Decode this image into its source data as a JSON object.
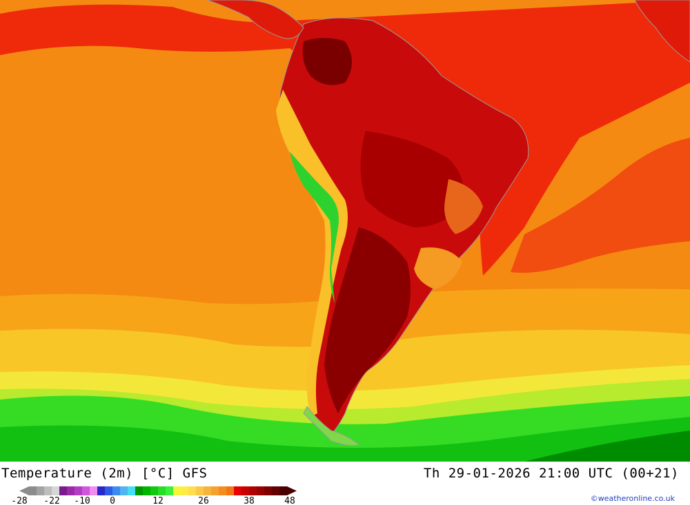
{
  "map": {
    "title": "Temperature (2m) [°C] GFS",
    "datetime": "Th 29-01-2026 21:00 UTC (00+21)",
    "credit": "©weatheronline.co.uk"
  },
  "legend": {
    "colors": [
      "#8c8c8c",
      "#a3a3a3",
      "#bdbdbd",
      "#d6d6d6",
      "#7a1a8c",
      "#9c2aa8",
      "#b43cc4",
      "#d256dc",
      "#f08cf0",
      "#2828c8",
      "#2c5ce6",
      "#3c8cf0",
      "#50b4f0",
      "#46dcf5",
      "#009600",
      "#00b400",
      "#12c812",
      "#28dc28",
      "#3cf03c",
      "#f5f53c",
      "#ffeb46",
      "#ffdc50",
      "#fac846",
      "#f5b43c",
      "#f5a030",
      "#f58c1e",
      "#f07814",
      "#e60000",
      "#c80000",
      "#af0000",
      "#960000",
      "#7d0000",
      "#640000",
      "#4b0000"
    ],
    "labels": [
      {
        "text": "-28",
        "index": 0
      },
      {
        "text": "-22",
        "index": 3
      },
      {
        "text": "-10",
        "index": 7
      },
      {
        "text": "0",
        "index": 11
      },
      {
        "text": "12",
        "index": 17
      },
      {
        "text": "26",
        "index": 23
      },
      {
        "text": "38",
        "index": 29
      },
      {
        "text": "48",
        "index": 33
      }
    ]
  }
}
